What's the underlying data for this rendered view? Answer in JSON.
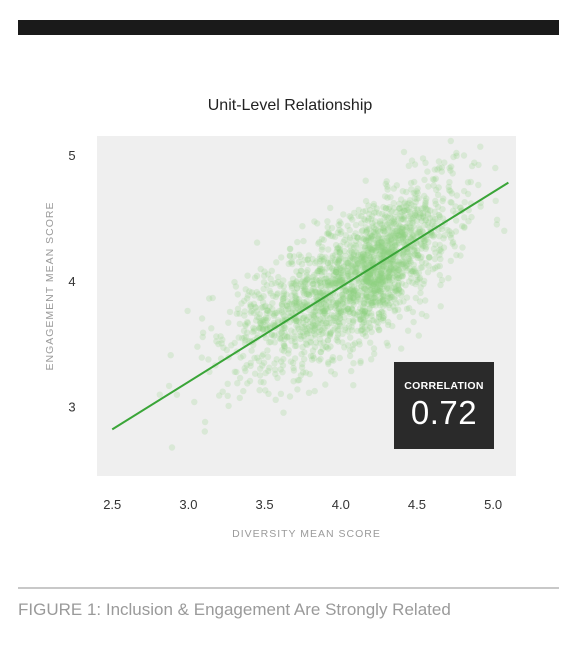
{
  "chart_data": {
    "type": "scatter",
    "title": "Unit-Level Relationship",
    "xlabel": "DIVERSITY MEAN SCORE",
    "ylabel": "ENGAGEMENT MEAN SCORE",
    "xlim": [
      2.4,
      5.15
    ],
    "ylim": [
      2.45,
      5.15
    ],
    "x_ticks": [
      "2.5",
      "3.0",
      "3.5",
      "4.0",
      "4.5",
      "5.0"
    ],
    "x_tick_values": [
      2.5,
      3.0,
      3.5,
      4.0,
      4.5,
      5.0
    ],
    "y_ticks": [
      "3",
      "4",
      "5"
    ],
    "y_tick_values": [
      3,
      4,
      5
    ],
    "grid": false,
    "background_color": "#efefef",
    "point_color": "#8fd07f",
    "trend_color": "#3aa538",
    "trendline": {
      "x": [
        2.5,
        5.1
      ],
      "y": [
        2.82,
        4.78
      ]
    },
    "point_cloud": {
      "count": 2200,
      "center_x": 4.15,
      "center_y": 4.02,
      "spread_x": 0.33,
      "spread_y": 0.36,
      "correlation": 0.72
    },
    "annotation": {
      "label": "CORRELATION",
      "value": "0.72"
    }
  },
  "caption": "FIGURE 1: Inclusion & Engagement Are Strongly Related"
}
